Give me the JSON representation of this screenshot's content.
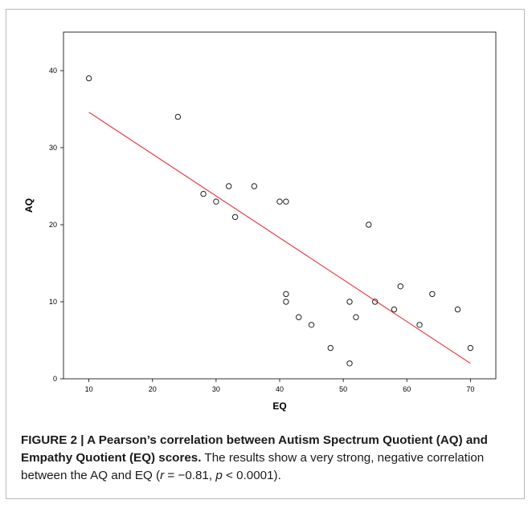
{
  "chart_data": {
    "type": "scatter",
    "xlabel": "EQ",
    "ylabel": "AQ",
    "xlim": [
      6,
      74
    ],
    "ylim": [
      0,
      45
    ],
    "x_ticks": [
      10,
      20,
      30,
      40,
      50,
      60,
      70
    ],
    "y_ticks": [
      0,
      10,
      20,
      30,
      40
    ],
    "grid": false,
    "points": [
      {
        "x": 10,
        "y": 39
      },
      {
        "x": 24,
        "y": 34
      },
      {
        "x": 28,
        "y": 24
      },
      {
        "x": 30,
        "y": 23
      },
      {
        "x": 32,
        "y": 25
      },
      {
        "x": 33,
        "y": 21
      },
      {
        "x": 36,
        "y": 25
      },
      {
        "x": 40,
        "y": 23
      },
      {
        "x": 41,
        "y": 23
      },
      {
        "x": 41,
        "y": 11
      },
      {
        "x": 41,
        "y": 10
      },
      {
        "x": 43,
        "y": 8
      },
      {
        "x": 45,
        "y": 7
      },
      {
        "x": 48,
        "y": 4
      },
      {
        "x": 51,
        "y": 10
      },
      {
        "x": 51,
        "y": 2
      },
      {
        "x": 52,
        "y": 8
      },
      {
        "x": 54,
        "y": 20
      },
      {
        "x": 55,
        "y": 10
      },
      {
        "x": 58,
        "y": 9
      },
      {
        "x": 59,
        "y": 12
      },
      {
        "x": 62,
        "y": 7
      },
      {
        "x": 64,
        "y": 11
      },
      {
        "x": 68,
        "y": 9
      },
      {
        "x": 70,
        "y": 4
      }
    ],
    "fit_line": {
      "start": {
        "x": 10,
        "y": 34.6
      },
      "end": {
        "x": 70,
        "y": 2.0
      },
      "color": "#e8414a"
    },
    "marker_style": "open-circle"
  },
  "caption": {
    "label": "FIGURE 2 | ",
    "title": "A Pearson’s correlation between Autism Spectrum Quotient (AQ) and Empathy Quotient (EQ) scores.",
    "text_before": " The results show a very strong, negative correlation between the AQ and EQ (",
    "r_symbol": "r",
    "r_value": " = −0.81, ",
    "p_symbol": "p",
    "p_value": " < 0.0001)."
  },
  "colors": {
    "plot_background": "#ffffff",
    "frame_border": "#b9b9b9",
    "fit_line": "#e8414a",
    "marker": "#222222"
  }
}
